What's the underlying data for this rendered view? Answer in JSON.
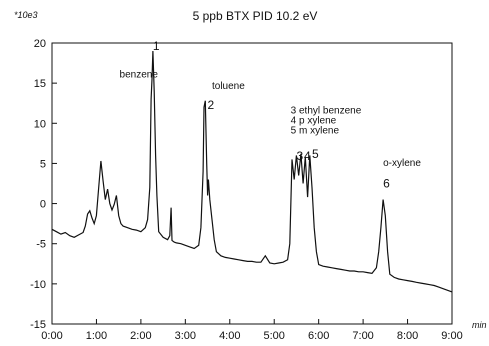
{
  "chart_data": {
    "type": "line",
    "title": "5 ppb BTX    PID 10.2 eV",
    "y_multiplier_label": "*10e3",
    "xlabel": "min",
    "ylabel": "",
    "x_ticks": [
      "0:00",
      "1:00",
      "2:00",
      "3:00",
      "4:00",
      "5:00",
      "6:00",
      "7:00",
      "8:00",
      "9:00"
    ],
    "y_ticks": [
      "20",
      "15",
      "10",
      "5",
      "0",
      "-5",
      "-10",
      "-15"
    ],
    "xlim": [
      0,
      9
    ],
    "ylim": [
      -15,
      20
    ],
    "grid": false,
    "line_color": "#111111",
    "annotations": [
      {
        "text": "benzene",
        "x": 1.52,
        "y": 15.7
      },
      {
        "text": "toluene",
        "x": 3.6,
        "y": 14.3
      },
      {
        "text": "3 ethyl benzene",
        "x": 5.37,
        "y": 11.2
      },
      {
        "text": "4 p xylene",
        "x": 5.37,
        "y": 10.0
      },
      {
        "text": "5 m xylene",
        "x": 5.37,
        "y": 8.7
      },
      {
        "text": "o-xylene",
        "x": 7.45,
        "y": 4.7
      }
    ],
    "peak_labels": [
      {
        "text": "1",
        "x": 2.27,
        "y": 19.1
      },
      {
        "text": "2",
        "x": 3.5,
        "y": 11.8
      },
      {
        "text": "3",
        "x": 5.5,
        "y": 5.4
      },
      {
        "text": "4",
        "x": 5.67,
        "y": 5.4
      },
      {
        "text": "5",
        "x": 5.85,
        "y": 5.7
      },
      {
        "text": "6",
        "x": 7.45,
        "y": 2.0
      }
    ],
    "series": [
      {
        "x": [
          0.0,
          0.1,
          0.2,
          0.3,
          0.4,
          0.5,
          0.6,
          0.7,
          0.75,
          0.8,
          0.85,
          0.9,
          0.95,
          1.0,
          1.05,
          1.1,
          1.15,
          1.2,
          1.25,
          1.3,
          1.35,
          1.4,
          1.45,
          1.5,
          1.55,
          1.6,
          1.7,
          1.8,
          1.9,
          2.0,
          2.1,
          2.15,
          2.2,
          2.23,
          2.25,
          2.27,
          2.3,
          2.33,
          2.36,
          2.4,
          2.5,
          2.6,
          2.65,
          2.68,
          2.7,
          2.75,
          2.8,
          2.9,
          3.0,
          3.1,
          3.2,
          3.3,
          3.35,
          3.4,
          3.42,
          3.45,
          3.48,
          3.5,
          3.52,
          3.55,
          3.6,
          3.65,
          3.7,
          3.8,
          3.9,
          4.0,
          4.1,
          4.2,
          4.3,
          4.4,
          4.5,
          4.6,
          4.7,
          4.8,
          4.9,
          5.0,
          5.1,
          5.2,
          5.3,
          5.35,
          5.4,
          5.45,
          5.5,
          5.55,
          5.6,
          5.65,
          5.7,
          5.75,
          5.8,
          5.85,
          5.9,
          5.95,
          6.0,
          6.1,
          6.2,
          6.3,
          6.4,
          6.5,
          6.6,
          6.7,
          6.8,
          6.9,
          7.0,
          7.1,
          7.2,
          7.3,
          7.35,
          7.4,
          7.45,
          7.5,
          7.55,
          7.6,
          7.7,
          7.8,
          7.9,
          8.0,
          8.1,
          8.2,
          8.3,
          8.4,
          8.5,
          8.6,
          8.7,
          8.8,
          8.9,
          9.0
        ],
        "values": [
          -3.2,
          -3.5,
          -3.8,
          -3.6,
          -4.0,
          -4.2,
          -3.9,
          -3.6,
          -2.8,
          -1.3,
          -0.9,
          -1.8,
          -2.5,
          -1.5,
          2.0,
          5.3,
          2.8,
          0.5,
          1.8,
          0.0,
          -0.8,
          -0.1,
          1.0,
          -1.5,
          -2.5,
          -2.8,
          -3.0,
          -3.2,
          -3.3,
          -3.5,
          -3.0,
          -2.0,
          2.0,
          13.0,
          15.5,
          19.0,
          14.0,
          6.0,
          1.0,
          -3.5,
          -4.2,
          -4.5,
          -4.0,
          -0.5,
          -4.6,
          -4.8,
          -4.9,
          -5.0,
          -5.2,
          -5.4,
          -5.6,
          -5.2,
          -3.0,
          4.0,
          12.0,
          12.8,
          5.0,
          1.0,
          3.0,
          0.5,
          -2.0,
          -4.5,
          -6.0,
          -6.5,
          -6.7,
          -6.8,
          -6.9,
          -7.0,
          -7.1,
          -7.2,
          -7.2,
          -7.3,
          -7.3,
          -6.5,
          -7.4,
          -7.5,
          -7.4,
          -7.3,
          -7.0,
          -5.0,
          5.5,
          3.0,
          6.0,
          3.5,
          6.2,
          2.5,
          5.8,
          0.8,
          6.0,
          2.0,
          -3.0,
          -6.0,
          -7.6,
          -7.8,
          -7.9,
          -8.0,
          -8.1,
          -8.2,
          -8.3,
          -8.4,
          -8.4,
          -8.5,
          -8.5,
          -8.6,
          -8.7,
          -8.0,
          -6.0,
          -3.0,
          0.5,
          -1.5,
          -6.0,
          -8.8,
          -9.2,
          -9.4,
          -9.5,
          -9.6,
          -9.7,
          -9.8,
          -9.9,
          -10.0,
          -10.1,
          -10.2,
          -10.4,
          -10.6,
          -10.8,
          -11.0
        ]
      }
    ]
  }
}
